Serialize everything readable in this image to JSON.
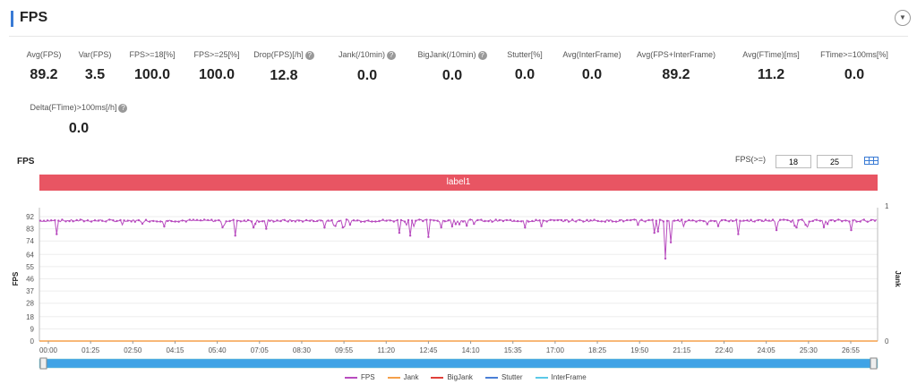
{
  "header": {
    "title": "FPS",
    "collapse_icon": "chevron-down-icon"
  },
  "metrics_row1": [
    {
      "label": "Avg(FPS)",
      "value": "89.2",
      "help": false
    },
    {
      "label": "Var(FPS)",
      "value": "3.5",
      "help": false
    },
    {
      "label": "FPS>=18[%]",
      "value": "100.0",
      "help": false
    },
    {
      "label": "FPS>=25[%]",
      "value": "100.0",
      "help": false
    },
    {
      "label": "Drop(FPS)[/h]",
      "value": "12.8",
      "help": true
    },
    {
      "label": "Jank(/10min)",
      "value": "0.0",
      "help": true
    },
    {
      "label": "BigJank(/10min)",
      "value": "0.0",
      "help": true
    },
    {
      "label": "Stutter[%]",
      "value": "0.0",
      "help": false
    },
    {
      "label": "Avg(InterFrame)",
      "value": "0.0",
      "help": false
    },
    {
      "label": "Avg(FPS+InterFrame)",
      "value": "89.2",
      "help": false
    },
    {
      "label": "Avg(FTime)[ms]",
      "value": "11.2",
      "help": false
    },
    {
      "label": "FTime>=100ms[%]",
      "value": "0.0",
      "help": false
    }
  ],
  "metrics_row2": [
    {
      "label": "Delta(FTime)>100ms[/h]",
      "value": "0.0",
      "help": true
    }
  ],
  "chart_header": {
    "title": "FPS",
    "threshold_label": "FPS(>=)",
    "threshold_1": "18",
    "threshold_2": "25"
  },
  "label_band": {
    "text": "label1",
    "color": "#e85563"
  },
  "chart_data": {
    "type": "line",
    "y_left_label": "FPS",
    "y_right_label": "Jank",
    "y_left_ticks": [
      "92",
      "83",
      "74",
      "64",
      "55",
      "46",
      "37",
      "28",
      "18",
      "9",
      "0"
    ],
    "y_right_ticks": [
      "1",
      "0"
    ],
    "y_left_range": [
      0,
      92
    ],
    "x_ticks": [
      "00:00",
      "01:25",
      "02:50",
      "04:15",
      "05:40",
      "07:05",
      "08:30",
      "09:55",
      "11:20",
      "12:45",
      "14:10",
      "15:35",
      "17:00",
      "18:25",
      "19:50",
      "21:15",
      "22:40",
      "24:05",
      "25:30",
      "26:55"
    ],
    "baseline_fps": 89,
    "dips": [
      {
        "t": 0.02,
        "v": 79
      },
      {
        "t": 0.21,
        "v": 85
      },
      {
        "t": 0.235,
        "v": 82
      },
      {
        "t": 0.24,
        "v": 79
      },
      {
        "t": 0.26,
        "v": 84
      },
      {
        "t": 0.27,
        "v": 85
      },
      {
        "t": 0.3,
        "v": 86
      },
      {
        "t": 0.36,
        "v": 85
      },
      {
        "t": 0.45,
        "v": 82
      },
      {
        "t": 0.47,
        "v": 86
      },
      {
        "t": 0.49,
        "v": 83
      },
      {
        "t": 0.5,
        "v": 83
      },
      {
        "t": 0.57,
        "v": 86
      },
      {
        "t": 0.62,
        "v": 85
      },
      {
        "t": 0.68,
        "v": 84
      },
      {
        "t": 0.74,
        "v": 86
      },
      {
        "t": 0.77,
        "v": 84
      },
      {
        "t": 0.81,
        "v": 83
      },
      {
        "t": 0.87,
        "v": 85
      },
      {
        "t": 0.9,
        "v": 83
      },
      {
        "t": 0.915,
        "v": 78
      },
      {
        "t": 0.95,
        "v": 83
      },
      {
        "t": 0.99,
        "v": 82
      },
      {
        "t": 1.0,
        "v": 66
      },
      {
        "t": 1.02,
        "v": 80
      },
      {
        "t": 1.06,
        "v": 78
      },
      {
        "t": 1.18,
        "v": 80
      },
      {
        "t": 1.2,
        "v": 81
      },
      {
        "t": 1.23,
        "v": 84
      },
      {
        "t": 1.33,
        "v": 86
      },
      {
        "t": 1.47,
        "v": 86
      },
      {
        "t": 1.56,
        "v": 84
      },
      {
        "t": 1.64,
        "v": 80
      },
      {
        "t": 1.66,
        "v": 84
      },
      {
        "t": 1.88,
        "v": 86
      },
      {
        "t": 2.04,
        "v": 85
      },
      {
        "t": 2.08,
        "v": 85
      }
    ],
    "big_dips": [
      {
        "x": 0.02,
        "v": 79
      },
      {
        "x": 0.233,
        "v": 78
      },
      {
        "x": 0.362,
        "v": 84
      },
      {
        "x": 0.43,
        "v": 80
      },
      {
        "x": 0.443,
        "v": 78
      },
      {
        "x": 0.465,
        "v": 77
      },
      {
        "x": 0.735,
        "v": 80
      },
      {
        "x": 0.739,
        "v": 81
      },
      {
        "x": 0.748,
        "v": 61
      },
      {
        "x": 0.754,
        "v": 73
      },
      {
        "x": 0.81,
        "v": 85
      },
      {
        "x": 0.835,
        "v": 79
      },
      {
        "x": 0.88,
        "v": 82
      },
      {
        "x": 0.905,
        "v": 84
      },
      {
        "x": 0.97,
        "v": 82
      },
      {
        "x": 0.6,
        "v": 85
      },
      {
        "x": 0.58,
        "v": 84
      },
      {
        "x": 0.27,
        "v": 83
      },
      {
        "x": 0.255,
        "v": 84
      },
      {
        "x": 0.34,
        "v": 84
      }
    ],
    "series": [
      {
        "name": "FPS",
        "color": "#b84cbf"
      },
      {
        "name": "Jank",
        "color": "#f5a04a"
      },
      {
        "name": "BigJank",
        "color": "#e0403a"
      },
      {
        "name": "Stutter",
        "color": "#4a7fd6"
      },
      {
        "name": "InterFrame",
        "color": "#5cc9e8"
      }
    ]
  }
}
